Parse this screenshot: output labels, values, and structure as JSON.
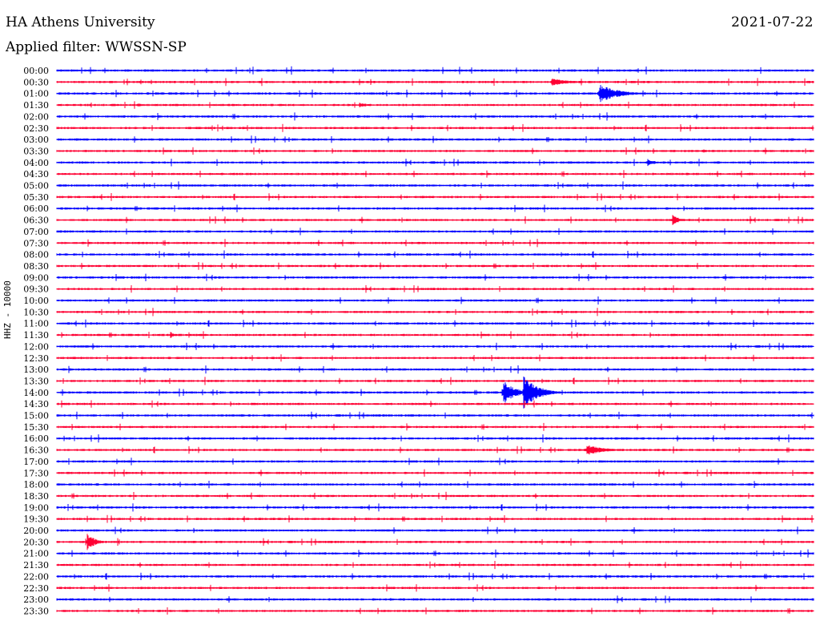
{
  "header": {
    "station": "HA Athens University",
    "date": "2021-07-22",
    "filter_label": "Applied filter: WWSSN-SP"
  },
  "chart_data": {
    "type": "line",
    "title": "HA Athens University",
    "subtitle": "Applied filter: WWSSN-SP",
    "date": "2021-07-22",
    "ylabel": "HHZ - 10000",
    "row_labels": [
      "00:00",
      "00:30",
      "01:00",
      "01:30",
      "02:00",
      "02:30",
      "03:00",
      "03:30",
      "04:00",
      "04:30",
      "05:00",
      "05:30",
      "06:00",
      "06:30",
      "07:00",
      "07:30",
      "08:00",
      "08:30",
      "09:00",
      "09:30",
      "10:00",
      "10:30",
      "11:00",
      "11:30",
      "12:00",
      "12:30",
      "13:00",
      "13:30",
      "14:00",
      "14:30",
      "15:00",
      "15:30",
      "16:00",
      "16:30",
      "17:00",
      "17:30",
      "18:00",
      "18:30",
      "19:00",
      "19:30",
      "20:00",
      "20:30",
      "21:00",
      "21:30",
      "22:00",
      "22:30",
      "23:00",
      "23:30"
    ],
    "row_colors": [
      "#0000ff",
      "#ff0033"
    ],
    "x_range_minutes": [
      0,
      30
    ],
    "grid": false,
    "events": [
      {
        "row": "00:30",
        "minute": 10.8,
        "amplitude": 2,
        "duration": 0.8
      },
      {
        "row": "00:30",
        "minute": 19.6,
        "amplitude": 5,
        "duration": 1.9
      },
      {
        "row": "01:00",
        "minute": 21.5,
        "amplitude": 12,
        "duration": 2.0
      },
      {
        "row": "01:30",
        "minute": 3.2,
        "amplitude": 3,
        "duration": 0.8
      },
      {
        "row": "01:30",
        "minute": 12.0,
        "amplitude": 3,
        "duration": 1.1
      },
      {
        "row": "02:30",
        "minute": 5.2,
        "amplitude": 2,
        "duration": 0.8
      },
      {
        "row": "02:30",
        "minute": 13.4,
        "amplitude": 2,
        "duration": 0.4
      },
      {
        "row": "03:00",
        "minute": 29.1,
        "amplitude": 3,
        "duration": 0.4
      },
      {
        "row": "03:30",
        "minute": 25.6,
        "amplitude": 3,
        "duration": 0.5
      },
      {
        "row": "04:00",
        "minute": 23.4,
        "amplitude": 6,
        "duration": 0.7
      },
      {
        "row": "04:00",
        "minute": 19.3,
        "amplitude": 2,
        "duration": 0.3
      },
      {
        "row": "06:30",
        "minute": 24.4,
        "amplitude": 7,
        "duration": 0.7
      },
      {
        "row": "06:30",
        "minute": 5.8,
        "amplitude": 2,
        "duration": 0.3
      },
      {
        "row": "11:30",
        "minute": 4.5,
        "amplitude": 4,
        "duration": 0.6
      },
      {
        "row": "14:00",
        "minute": 17.7,
        "amplitude": 16,
        "duration": 1.2
      },
      {
        "row": "14:00",
        "minute": 18.5,
        "amplitude": 22,
        "duration": 1.5
      },
      {
        "row": "16:30",
        "minute": 21.0,
        "amplitude": 7,
        "duration": 2.0
      },
      {
        "row": "20:30",
        "minute": 1.2,
        "amplitude": 12,
        "duration": 0.8
      },
      {
        "row": "23:00",
        "minute": 0.5,
        "amplitude": 2,
        "duration": 0.8
      },
      {
        "row": "23:00",
        "minute": 13.2,
        "amplitude": 2,
        "duration": 0.8
      }
    ]
  }
}
